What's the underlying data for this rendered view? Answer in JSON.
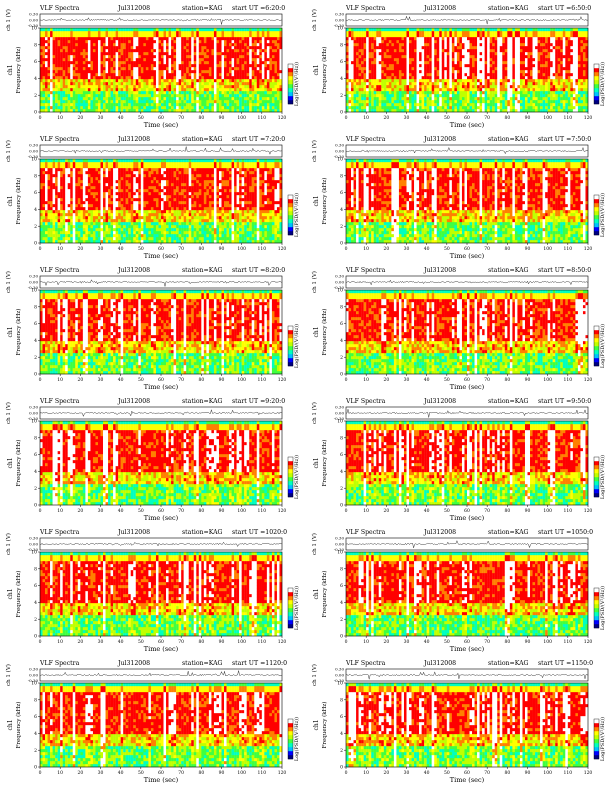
{
  "chart_data": [
    {
      "type": "heatmap",
      "title": "VLF Spectra",
      "date": "Jul312008",
      "station": "station=KAG",
      "start": "start UT =6:20:0",
      "ylabel_top": "ch 1 (V)",
      "ylabel_spec": "Frequency (kHz)",
      "ylabel_ch": "ch1",
      "xlabel": "Time (sec)",
      "xlim": [
        0,
        120
      ],
      "ylim": [
        0,
        10
      ],
      "top_ylim": [
        -0.3,
        0.3
      ],
      "top_ticks": [
        "0.30",
        "0.00",
        "-0.30"
      ],
      "xticks": [
        0,
        10,
        20,
        30,
        40,
        50,
        60,
        70,
        80,
        90,
        100,
        110,
        120
      ],
      "yticks": [
        0,
        2,
        4,
        6,
        8,
        10
      ],
      "colorbar_label": "Log(PSD/(V²/Hz))",
      "colorscale": [
        "#000080",
        "#0000ff",
        "#00c0ff",
        "#00ffc0",
        "#40ff40",
        "#c0ff00",
        "#ffff00",
        "#ff8000",
        "#ff0000",
        "#ffffff"
      ]
    },
    {
      "type": "heatmap",
      "title": "VLF Spectra",
      "date": "Jul312008",
      "station": "station=KAG",
      "start": "start UT =6:50:0",
      "ylabel_top": "ch 1 (V)",
      "ylabel_spec": "Frequency (kHz)",
      "ylabel_ch": "ch1",
      "xlabel": "Time (sec)",
      "xlim": [
        0,
        120
      ],
      "ylim": [
        0,
        10
      ],
      "top_ylim": [
        -0.3,
        0.3
      ],
      "top_ticks": [
        "0.30",
        "0.00",
        "-0.30"
      ],
      "xticks": [
        0,
        10,
        20,
        30,
        40,
        50,
        60,
        70,
        80,
        90,
        100,
        110,
        120
      ],
      "yticks": [
        0,
        2,
        4,
        6,
        8,
        10
      ],
      "colorbar_label": "Log(PSD/(V²/Hz))",
      "colorscale": [
        "#000080",
        "#0000ff",
        "#00c0ff",
        "#00ffc0",
        "#40ff40",
        "#c0ff00",
        "#ffff00",
        "#ff8000",
        "#ff0000",
        "#ffffff"
      ]
    },
    {
      "type": "heatmap",
      "title": "VLF Spectra",
      "date": "Jul312008",
      "station": "station=KAG",
      "start": "start UT =7:20:0",
      "ylabel_top": "ch 1 (V)",
      "ylabel_spec": "Frequency (kHz)",
      "ylabel_ch": "ch1",
      "xlabel": "Time (sec)",
      "xlim": [
        0,
        120
      ],
      "ylim": [
        0,
        10
      ],
      "top_ylim": [
        -0.3,
        0.3
      ],
      "top_ticks": [
        "0.30",
        "0.00",
        "-0.30"
      ],
      "xticks": [
        0,
        10,
        20,
        30,
        40,
        50,
        60,
        70,
        80,
        90,
        100,
        110,
        120
      ],
      "yticks": [
        0,
        2,
        4,
        6,
        8,
        10
      ],
      "colorbar_label": "Log(PSD/(V²/Hz))",
      "colorscale": [
        "#000080",
        "#0000ff",
        "#00c0ff",
        "#00ffc0",
        "#40ff40",
        "#c0ff00",
        "#ffff00",
        "#ff8000",
        "#ff0000",
        "#ffffff"
      ]
    },
    {
      "type": "heatmap",
      "title": "VLF Spectra",
      "date": "Jul312008",
      "station": "station=KAG",
      "start": "start UT =7:50:0",
      "ylabel_top": "ch 1 (V)",
      "ylabel_spec": "Frequency (kHz)",
      "ylabel_ch": "ch1",
      "xlabel": "Time (sec)",
      "xlim": [
        0,
        120
      ],
      "ylim": [
        0,
        10
      ],
      "top_ylim": [
        -0.3,
        0.3
      ],
      "top_ticks": [
        "0.30",
        "0.00",
        "-0.30"
      ],
      "xticks": [
        0,
        10,
        20,
        30,
        40,
        50,
        60,
        70,
        80,
        90,
        100,
        110,
        120
      ],
      "yticks": [
        0,
        2,
        4,
        6,
        8,
        10
      ],
      "colorbar_label": "Log(PSD/(V²/Hz))",
      "colorscale": [
        "#000080",
        "#0000ff",
        "#00c0ff",
        "#00ffc0",
        "#40ff40",
        "#c0ff00",
        "#ffff00",
        "#ff8000",
        "#ff0000",
        "#ffffff"
      ]
    },
    {
      "type": "heatmap",
      "title": "VLF Spectra",
      "date": "Jul312008",
      "station": "station=KAG",
      "start": "start UT =8:20:0",
      "ylabel_top": "ch 1 (V)",
      "ylabel_spec": "Frequency (kHz)",
      "ylabel_ch": "ch1",
      "xlabel": "Time (sec)",
      "xlim": [
        0,
        120
      ],
      "ylim": [
        0,
        10
      ],
      "top_ylim": [
        -0.3,
        0.3
      ],
      "top_ticks": [
        "0.30",
        "0.00",
        "-0.30"
      ],
      "xticks": [
        0,
        10,
        20,
        30,
        40,
        50,
        60,
        70,
        80,
        90,
        100,
        110,
        120
      ],
      "yticks": [
        0,
        2,
        4,
        6,
        8,
        10
      ],
      "colorbar_label": "Log(PSD/(V²/Hz))",
      "colorscale": [
        "#000080",
        "#0000ff",
        "#00c0ff",
        "#00ffc0",
        "#40ff40",
        "#c0ff00",
        "#ffff00",
        "#ff8000",
        "#ff0000",
        "#ffffff"
      ]
    },
    {
      "type": "heatmap",
      "title": "VLF Spectra",
      "date": "Jul312008",
      "station": "station=KAG",
      "start": "start UT =8:50:0",
      "ylabel_top": "ch 1 (V)",
      "ylabel_spec": "Frequency (kHz)",
      "ylabel_ch": "ch1",
      "xlabel": "Time (sec)",
      "xlim": [
        0,
        120
      ],
      "ylim": [
        0,
        10
      ],
      "top_ylim": [
        -0.3,
        0.3
      ],
      "top_ticks": [
        "0.30",
        "0.00",
        "-0.30"
      ],
      "xticks": [
        0,
        10,
        20,
        30,
        40,
        50,
        60,
        70,
        80,
        90,
        100,
        110,
        120
      ],
      "yticks": [
        0,
        2,
        4,
        6,
        8,
        10
      ],
      "colorbar_label": "Log(PSD/(V²/Hz))",
      "colorscale": [
        "#000080",
        "#0000ff",
        "#00c0ff",
        "#00ffc0",
        "#40ff40",
        "#c0ff00",
        "#ffff00",
        "#ff8000",
        "#ff0000",
        "#ffffff"
      ]
    },
    {
      "type": "heatmap",
      "title": "VLF Spectra",
      "date": "Jul312008",
      "station": "station=KAG",
      "start": "start UT =9:20:0",
      "ylabel_top": "ch 1 (V)",
      "ylabel_spec": "Frequency (kHz)",
      "ylabel_ch": "ch1",
      "xlabel": "Time (sec)",
      "xlim": [
        0,
        120
      ],
      "ylim": [
        0,
        10
      ],
      "top_ylim": [
        -0.3,
        0.3
      ],
      "top_ticks": [
        "0.30",
        "0.00",
        "-0.30"
      ],
      "xticks": [
        0,
        10,
        20,
        30,
        40,
        50,
        60,
        70,
        80,
        90,
        100,
        110,
        120
      ],
      "yticks": [
        0,
        2,
        4,
        6,
        8,
        10
      ],
      "colorbar_label": "Log(PSD/(V²/Hz))",
      "colorscale": [
        "#000080",
        "#0000ff",
        "#00c0ff",
        "#00ffc0",
        "#40ff40",
        "#c0ff00",
        "#ffff00",
        "#ff8000",
        "#ff0000",
        "#ffffff"
      ]
    },
    {
      "type": "heatmap",
      "title": "VLF Spectra",
      "date": "Jul312008",
      "station": "station=KAG",
      "start": "start UT =9:50:0",
      "ylabel_top": "ch 1 (V)",
      "ylabel_spec": "Frequency (kHz)",
      "ylabel_ch": "ch1",
      "xlabel": "Time (sec)",
      "xlim": [
        0,
        120
      ],
      "ylim": [
        0,
        10
      ],
      "top_ylim": [
        -0.3,
        0.3
      ],
      "top_ticks": [
        "0.30",
        "0.00",
        "-0.30"
      ],
      "xticks": [
        0,
        10,
        20,
        30,
        40,
        50,
        60,
        70,
        80,
        90,
        100,
        110,
        120
      ],
      "yticks": [
        0,
        2,
        4,
        6,
        8,
        10
      ],
      "colorbar_label": "Log(PSD/(V²/Hz))",
      "colorscale": [
        "#000080",
        "#0000ff",
        "#00c0ff",
        "#00ffc0",
        "#40ff40",
        "#c0ff00",
        "#ffff00",
        "#ff8000",
        "#ff0000",
        "#ffffff"
      ]
    },
    {
      "type": "heatmap",
      "title": "VLF Spectra",
      "date": "Jul312008",
      "station": "station=KAG",
      "start": "start UT =1020:0",
      "ylabel_top": "ch 1 (V)",
      "ylabel_spec": "Frequency (kHz)",
      "ylabel_ch": "ch1",
      "xlabel": "Time (sec)",
      "xlim": [
        0,
        120
      ],
      "ylim": [
        0,
        10
      ],
      "top_ylim": [
        -0.3,
        0.3
      ],
      "top_ticks": [
        "0.30",
        "0.00",
        "-0.30"
      ],
      "xticks": [
        0,
        10,
        20,
        30,
        40,
        50,
        60,
        70,
        80,
        90,
        100,
        110,
        120
      ],
      "yticks": [
        0,
        2,
        4,
        6,
        8,
        10
      ],
      "colorbar_label": "Log(PSD/(V²/Hz))",
      "colorscale": [
        "#000080",
        "#0000ff",
        "#00c0ff",
        "#00ffc0",
        "#40ff40",
        "#c0ff00",
        "#ffff00",
        "#ff8000",
        "#ff0000",
        "#ffffff"
      ]
    },
    {
      "type": "heatmap",
      "title": "VLF Spectra",
      "date": "Jul312008",
      "station": "station=KAG",
      "start": "start UT =1050:0",
      "ylabel_top": "ch 1 (V)",
      "ylabel_spec": "Frequency (kHz)",
      "ylabel_ch": "ch1",
      "xlabel": "Time (sec)",
      "xlim": [
        0,
        120
      ],
      "ylim": [
        0,
        10
      ],
      "top_ylim": [
        -0.3,
        0.3
      ],
      "top_ticks": [
        "0.30",
        "0.00",
        "-0.30"
      ],
      "xticks": [
        0,
        10,
        20,
        30,
        40,
        50,
        60,
        70,
        80,
        90,
        100,
        110,
        120
      ],
      "yticks": [
        0,
        2,
        4,
        6,
        8,
        10
      ],
      "colorbar_label": "Log(PSD/(V²/Hz))",
      "colorscale": [
        "#000080",
        "#0000ff",
        "#00c0ff",
        "#00ffc0",
        "#40ff40",
        "#c0ff00",
        "#ffff00",
        "#ff8000",
        "#ff0000",
        "#ffffff"
      ]
    },
    {
      "type": "heatmap",
      "title": "VLF Spectra",
      "date": "Jul312008",
      "station": "station=KAG",
      "start": "start UT =1120:0",
      "ylabel_top": "ch 1 (V)",
      "ylabel_spec": "Frequency (kHz)",
      "ylabel_ch": "ch1",
      "xlabel": "Time (sec)",
      "xlim": [
        0,
        120
      ],
      "ylim": [
        0,
        10
      ],
      "top_ylim": [
        -0.3,
        0.3
      ],
      "top_ticks": [
        "0.30",
        "0.00",
        "-0.30"
      ],
      "xticks": [
        0,
        10,
        20,
        30,
        40,
        50,
        60,
        70,
        80,
        90,
        100,
        110,
        120
      ],
      "yticks": [
        0,
        2,
        4,
        6,
        8,
        10
      ],
      "colorbar_label": "Log(PSD/(V²/Hz))",
      "colorscale": [
        "#000080",
        "#0000ff",
        "#00c0ff",
        "#00ffc0",
        "#40ff40",
        "#c0ff00",
        "#ffff00",
        "#ff8000",
        "#ff0000",
        "#ffffff"
      ]
    },
    {
      "type": "heatmap",
      "title": "VLF Spectra",
      "date": "Jul312008",
      "station": "station=KAG",
      "start": "start UT =1150:0",
      "ylabel_top": "ch 1 (V)",
      "ylabel_spec": "Frequency (kHz)",
      "ylabel_ch": "ch1",
      "xlabel": "Time (sec)",
      "xlim": [
        0,
        120
      ],
      "ylim": [
        0,
        10
      ],
      "top_ylim": [
        -0.3,
        0.3
      ],
      "top_ticks": [
        "0.30",
        "0.00",
        "-0.30"
      ],
      "xticks": [
        0,
        10,
        20,
        30,
        40,
        50,
        60,
        70,
        80,
        90,
        100,
        110,
        120
      ],
      "yticks": [
        0,
        2,
        4,
        6,
        8,
        10
      ],
      "colorbar_label": "Log(PSD/(V²/Hz))",
      "colorscale": [
        "#000080",
        "#0000ff",
        "#00c0ff",
        "#00ffc0",
        "#40ff40",
        "#c0ff00",
        "#ffff00",
        "#ff8000",
        "#ff0000",
        "#ffffff"
      ]
    }
  ]
}
